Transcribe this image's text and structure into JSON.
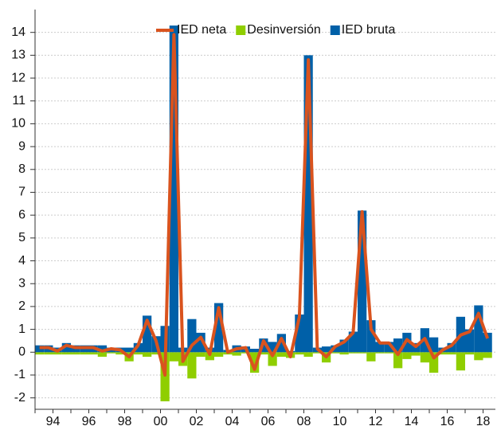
{
  "chart_data": {
    "type": "bar",
    "categories": [
      null,
      null,
      "94",
      null,
      null,
      null,
      "96",
      null,
      null,
      null,
      "98",
      null,
      null,
      null,
      "00",
      null,
      null,
      null,
      "02",
      null,
      null,
      null,
      "04",
      null,
      null,
      null,
      "06",
      null,
      null,
      null,
      "08",
      null,
      null,
      null,
      "10",
      null,
      null,
      null,
      "12",
      null,
      null,
      null,
      "14",
      null,
      null,
      null,
      "16",
      null,
      null,
      null,
      "18"
    ],
    "series": [
      {
        "name": "IED neta",
        "color": "#d9531e",
        "type": "line",
        "values": [
          0.2,
          0.2,
          0.05,
          0.3,
          0.2,
          0.2,
          0.2,
          0.05,
          0.15,
          0.1,
          -0.2,
          0.3,
          1.4,
          0.5,
          -1.0,
          13.9,
          -0.4,
          0.3,
          0.65,
          -0.1,
          1.95,
          0.0,
          0.15,
          0.2,
          -0.75,
          0.5,
          -0.15,
          0.6,
          -0.2,
          1.55,
          12.8,
          0.15,
          -0.2,
          0.25,
          0.45,
          0.85,
          6.15,
          1.0,
          0.4,
          0.4,
          -0.1,
          0.55,
          0.25,
          0.6,
          -0.25,
          0.1,
          0.3,
          0.75,
          0.9,
          1.7,
          0.6
        ]
      },
      {
        "name": "Desinversión",
        "color": "#8fce00",
        "type": "bar",
        "values": [
          -0.1,
          -0.1,
          -0.1,
          -0.1,
          -0.1,
          -0.1,
          -0.1,
          -0.2,
          -0.05,
          -0.1,
          -0.4,
          -0.1,
          -0.2,
          -0.1,
          -2.15,
          -0.4,
          -0.6,
          -1.15,
          -0.2,
          -0.35,
          -0.2,
          -0.1,
          -0.15,
          -0.05,
          -0.9,
          -0.1,
          -0.6,
          -0.2,
          -0.25,
          -0.1,
          -0.2,
          -0.05,
          -0.45,
          -0.05,
          -0.1,
          -0.05,
          -0.05,
          -0.4,
          -0.05,
          -0.05,
          -0.7,
          -0.3,
          -0.15,
          -0.45,
          -0.9,
          -0.1,
          -0.1,
          -0.8,
          -0.1,
          -0.35,
          -0.25
        ]
      },
      {
        "name": "IED bruta",
        "color": "#0060a8",
        "type": "bar",
        "values": [
          0.3,
          0.3,
          0.2,
          0.4,
          0.3,
          0.3,
          0.3,
          0.3,
          0.2,
          0.2,
          0.2,
          0.4,
          1.6,
          0.7,
          1.15,
          14.3,
          0.2,
          1.45,
          0.85,
          0.2,
          2.15,
          0.1,
          0.3,
          0.25,
          0.15,
          0.6,
          0.45,
          0.8,
          0.05,
          1.65,
          13.0,
          0.2,
          0.25,
          0.3,
          0.55,
          0.9,
          6.2,
          1.4,
          0.45,
          0.45,
          0.6,
          0.85,
          0.4,
          1.05,
          0.65,
          0.2,
          0.4,
          1.55,
          1.0,
          2.05,
          0.85
        ]
      }
    ],
    "ylim": [
      -2.5,
      15
    ],
    "yticks": [
      -2,
      -1,
      0,
      1,
      2,
      3,
      4,
      5,
      6,
      7,
      8,
      9,
      10,
      11,
      12,
      13,
      14
    ],
    "grid": true,
    "legend": "top-right"
  }
}
